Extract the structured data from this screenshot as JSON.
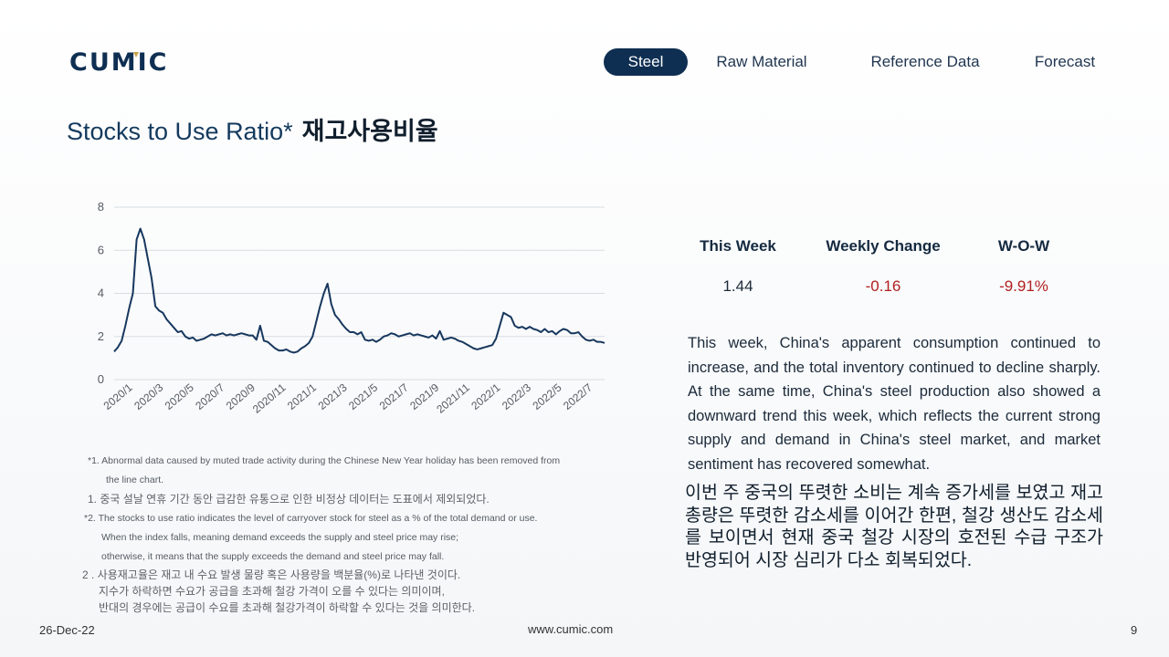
{
  "brand": {
    "logo_text": "CUMIC",
    "color": "#0f2f52",
    "accent": "#c8a24a"
  },
  "nav": {
    "items": [
      {
        "label": "Steel",
        "active": true
      },
      {
        "label": "Raw Material",
        "active": false
      },
      {
        "label": "Reference Data",
        "active": false
      },
      {
        "label": "Forecast",
        "active": false
      }
    ]
  },
  "page": {
    "title": "Stocks to Use Ratio*",
    "title_kr": "재고사용비율"
  },
  "chart_data": {
    "type": "line",
    "title": "",
    "xlabel": "",
    "ylabel": "",
    "ylim": [
      0,
      8
    ],
    "yticks": [
      0,
      2,
      4,
      6,
      8
    ],
    "grid": "horizontal",
    "line_color": "#17375e",
    "x_tick_labels": [
      "2020/1",
      "2020/3",
      "2020/5",
      "2020/7",
      "2020/9",
      "2020/11",
      "2021/1",
      "2021/3",
      "2021/5",
      "2021/7",
      "2021/9",
      "2021/11",
      "2022/1",
      "2022/3",
      "2022/5",
      "2022/7"
    ],
    "values": [
      1.3,
      1.5,
      1.8,
      2.5,
      3.3,
      4.0,
      6.5,
      7.0,
      6.5,
      5.6,
      4.7,
      3.4,
      3.2,
      3.1,
      2.8,
      2.6,
      2.4,
      2.2,
      2.25,
      2.0,
      1.9,
      1.95,
      1.8,
      1.85,
      1.9,
      2.0,
      2.1,
      2.05,
      2.1,
      2.15,
      2.05,
      2.1,
      2.05,
      2.1,
      2.15,
      2.1,
      2.05,
      2.05,
      1.85,
      2.5,
      1.8,
      1.75,
      1.6,
      1.45,
      1.35,
      1.35,
      1.4,
      1.3,
      1.25,
      1.3,
      1.45,
      1.55,
      1.7,
      2.0,
      2.7,
      3.4,
      4.0,
      4.45,
      3.5,
      3.0,
      2.8,
      2.55,
      2.35,
      2.2,
      2.2,
      2.1,
      2.2,
      1.85,
      1.8,
      1.85,
      1.75,
      1.85,
      2.0,
      2.05,
      2.15,
      2.1,
      2.0,
      2.05,
      2.1,
      2.15,
      2.05,
      2.1,
      2.05,
      2.0,
      1.95,
      2.05,
      1.9,
      2.25,
      1.85,
      1.9,
      1.95,
      1.9,
      1.8,
      1.75,
      1.65,
      1.55,
      1.45,
      1.4,
      1.45,
      1.5,
      1.55,
      1.6,
      1.9,
      2.5,
      3.1,
      3.0,
      2.9,
      2.5,
      2.4,
      2.45,
      2.35,
      2.45,
      2.35,
      2.3,
      2.2,
      2.35,
      2.2,
      2.25,
      2.1,
      2.25,
      2.35,
      2.3,
      2.15,
      2.15,
      2.2,
      2.0,
      1.85,
      1.8,
      1.85,
      1.75,
      1.75,
      1.7
    ]
  },
  "notes": {
    "n1_en_a": "*1. Abnormal data caused by muted trade activity during the Chinese New Year holiday has been removed from",
    "n1_en_b": "the line chart.",
    "n1_kr": "1. 중국 설날 연휴 기간 동안 급감한 유통으로 인한 비정상 데이터는 도표에서 제외되었다.",
    "n2_en_a": "*2. The stocks to use ratio indicates the level of carryover stock for steel as a % of the total demand or use.",
    "n2_en_b": "When the index falls, meaning demand exceeds the supply and steel price may rise;",
    "n2_en_c": "otherwise, it means that the supply exceeds the demand and steel price may fall.",
    "n2_kr_a": "2 . 사용재고율은 재고 내 수요 발생 물량 혹은 사용량을 백분율(%)로 나타낸 것이다.",
    "n2_kr_b": "지수가 하락하면 수요가 공급을 초과해 철강 가격이 오를 수 있다는 의미이며,",
    "n2_kr_c": "반대의 경우에는 공급이 수요를 초과해 철강가격이 하락할 수 있다는 것을 의미한다."
  },
  "stats": {
    "this_week_label": "This Week",
    "this_week_value": "1.44",
    "weekly_change_label": "Weekly Change",
    "weekly_change_value": "-0.16",
    "wow_label": "W-O-W",
    "wow_value": "-9.91%",
    "negative_color": "#b02020"
  },
  "description": {
    "en": "This week, China's apparent consumption continued to increase, and the total inventory continued to decline sharply. At the same time, China's steel production also showed a downward trend this week, which reflects the current strong supply and demand in China's steel market, and market sentiment has recovered somewhat.",
    "kr": "이번 주 중국의 뚜렷한 소비는 계속 증가세를 보였고 재고총량은 뚜렷한 감소세를 이어간 한편, 철강 생산도 감소세를 보이면서 현재 중국 철강 시장의 호전된 수급 구조가 반영되어 시장 심리가 다소 회복되었다."
  },
  "footer": {
    "date": "26-Dec-22",
    "url": "www.cumic.com",
    "page_number": "9"
  }
}
